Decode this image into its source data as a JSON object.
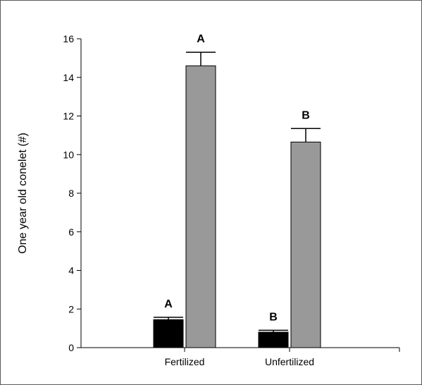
{
  "chart_data": {
    "type": "bar",
    "categories": [
      "Fertilized",
      "Unfertilized"
    ],
    "series": [
      {
        "color": "#000000",
        "values": [
          1.45,
          0.8
        ],
        "errors": [
          0.12,
          0.1
        ],
        "sig_labels": [
          "A",
          "B"
        ]
      },
      {
        "color": "#999999",
        "values": [
          14.6,
          10.65
        ],
        "errors": [
          0.7,
          0.7
        ],
        "sig_labels": [
          "A",
          "B"
        ]
      }
    ],
    "ylabel": "One year old conelet (#)",
    "ylim": [
      0,
      16
    ],
    "yticks": [
      0,
      2,
      4,
      6,
      8,
      10,
      12,
      14,
      16
    ],
    "ytick_labels": [
      "0",
      "2",
      "4",
      "6",
      "8",
      "10",
      "12",
      "14",
      "16"
    ],
    "grid": false,
    "legend": "none"
  }
}
